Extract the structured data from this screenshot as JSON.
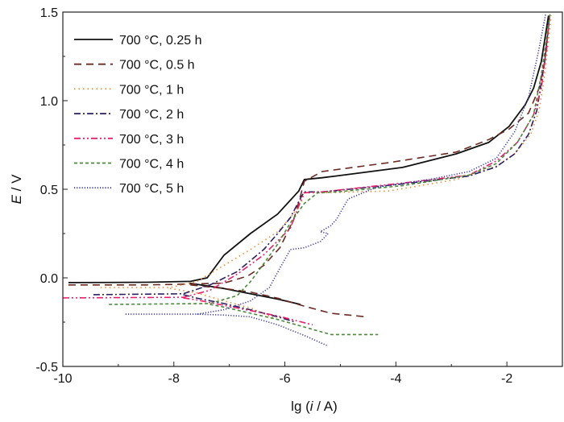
{
  "chart_data": {
    "type": "line",
    "title": "",
    "xlabel": "lg (i / A)",
    "xlabel_parts": {
      "prefix": "lg (",
      "italic": "i",
      "suffix": " / A)"
    },
    "ylabel": "E / V",
    "ylabel_parts": {
      "italic": "E",
      "suffix": " / V"
    },
    "xlim": [
      -10,
      -1
    ],
    "ylim": [
      -0.5,
      1.5
    ],
    "xticks": [
      -10,
      -8,
      -6,
      -4,
      -2
    ],
    "xtick_labels": [
      "-10",
      "-8",
      "-6",
      "-4",
      "-2"
    ],
    "yticks": [
      -0.5,
      0.0,
      0.5,
      1.0,
      1.5
    ],
    "ytick_labels": [
      "-0.5",
      "0.0",
      "0.5",
      "1.0",
      "1.5"
    ],
    "grid": false,
    "legend_position": "top-left",
    "series": [
      {
        "name": "700 °C, 0.25 h",
        "color": "#111111",
        "style": "solid",
        "anodic": [
          [
            -9.9,
            -0.027
          ],
          [
            -8.5,
            -0.025
          ],
          [
            -7.7,
            -0.02
          ],
          [
            -7.4,
            0.0
          ],
          [
            -7.1,
            0.127
          ],
          [
            -6.62,
            0.25
          ],
          [
            -6.13,
            0.36
          ],
          [
            -5.75,
            0.49
          ],
          [
            -5.65,
            0.555
          ],
          [
            -5.33,
            0.565
          ],
          [
            -5.07,
            0.575
          ],
          [
            -3.88,
            0.623
          ],
          [
            -2.91,
            0.7
          ],
          [
            -2.33,
            0.764
          ],
          [
            -1.96,
            0.855
          ],
          [
            -1.67,
            0.977
          ],
          [
            -1.52,
            1.07
          ],
          [
            -1.38,
            1.22
          ],
          [
            -1.25,
            1.48
          ]
        ],
        "cathodic": [
          [
            -7.72,
            -0.03
          ],
          [
            -7.1,
            -0.06
          ],
          [
            -6.62,
            -0.09
          ],
          [
            -6.13,
            -0.12
          ],
          [
            -5.72,
            -0.15
          ]
        ]
      },
      {
        "name": "700 °C, 0.5 h",
        "color": "#6b2a22",
        "style": "dashed",
        "anodic": [
          [
            -9.9,
            -0.04
          ],
          [
            -8.5,
            -0.04
          ],
          [
            -7.7,
            -0.035
          ],
          [
            -7.1,
            -0.03
          ],
          [
            -6.67,
            0.01
          ],
          [
            -6.38,
            0.07
          ],
          [
            -6.09,
            0.17
          ],
          [
            -5.84,
            0.33
          ],
          [
            -5.72,
            0.46
          ],
          [
            -5.65,
            0.545
          ],
          [
            -5.33,
            0.6
          ],
          [
            -4.13,
            0.65
          ],
          [
            -2.91,
            0.71
          ],
          [
            -2.33,
            0.78
          ],
          [
            -1.96,
            0.84
          ],
          [
            -1.61,
            0.93
          ],
          [
            -1.42,
            1.07
          ],
          [
            -1.32,
            1.22
          ],
          [
            -1.23,
            1.48
          ]
        ],
        "cathodic": [
          [
            -7.7,
            -0.04
          ],
          [
            -7.1,
            -0.06
          ],
          [
            -6.62,
            -0.08
          ],
          [
            -6.13,
            -0.115
          ],
          [
            -5.65,
            -0.16
          ],
          [
            -5.17,
            -0.2
          ],
          [
            -4.54,
            -0.22
          ]
        ]
      },
      {
        "name": "700 °C, 1 h",
        "color": "#f08a2c",
        "style": "dotted",
        "anodic": [
          [
            -9.32,
            -0.055
          ],
          [
            -8.07,
            -0.055
          ],
          [
            -7.58,
            -0.02
          ],
          [
            -7.1,
            0.07
          ],
          [
            -6.62,
            0.16
          ],
          [
            -6.13,
            0.26
          ],
          [
            -5.9,
            0.34
          ],
          [
            -5.7,
            0.43
          ],
          [
            -5.65,
            0.48
          ],
          [
            -5.33,
            0.48
          ],
          [
            -4.13,
            0.49
          ],
          [
            -2.91,
            0.555
          ],
          [
            -2.19,
            0.63
          ],
          [
            -1.86,
            0.7
          ],
          [
            -1.57,
            0.81
          ],
          [
            -1.42,
            0.945
          ],
          [
            -1.32,
            1.145
          ],
          [
            -1.25,
            1.34
          ],
          [
            -1.2,
            1.48
          ]
        ],
        "cathodic": [
          [
            -8.07,
            -0.06
          ],
          [
            -7.58,
            -0.085
          ],
          [
            -7.1,
            -0.13
          ],
          [
            -6.62,
            -0.17
          ],
          [
            -6.13,
            -0.235
          ]
        ]
      },
      {
        "name": "700 °C, 2 h",
        "color": "#2a2060",
        "style": "dash-dot",
        "anodic": [
          [
            -9.45,
            -0.095
          ],
          [
            -7.83,
            -0.09
          ],
          [
            -7.35,
            -0.04
          ],
          [
            -6.86,
            0.035
          ],
          [
            -6.38,
            0.16
          ],
          [
            -6.13,
            0.25
          ],
          [
            -5.9,
            0.34
          ],
          [
            -5.7,
            0.46
          ],
          [
            -5.65,
            0.485
          ],
          [
            -5.33,
            0.485
          ],
          [
            -3.88,
            0.53
          ],
          [
            -2.68,
            0.575
          ],
          [
            -2.19,
            0.627
          ],
          [
            -1.86,
            0.7
          ],
          [
            -1.61,
            0.81
          ],
          [
            -1.46,
            0.945
          ],
          [
            -1.32,
            1.22
          ],
          [
            -1.23,
            1.48
          ]
        ],
        "cathodic": [
          [
            -7.83,
            -0.095
          ],
          [
            -7.58,
            -0.115
          ],
          [
            -7.1,
            -0.145
          ],
          [
            -6.62,
            -0.18
          ],
          [
            -6.13,
            -0.22
          ],
          [
            -5.8,
            -0.25
          ]
        ]
      },
      {
        "name": "700 °C, 3 h",
        "color": "#e8206e",
        "style": "dash-dot-dot",
        "anodic": [
          [
            -10,
            -0.113
          ],
          [
            -7.83,
            -0.11
          ],
          [
            -7.35,
            -0.07
          ],
          [
            -6.86,
            0.02
          ],
          [
            -6.38,
            0.13
          ],
          [
            -5.9,
            0.28
          ],
          [
            -5.7,
            0.445
          ],
          [
            -5.65,
            0.48
          ],
          [
            -5.33,
            0.485
          ],
          [
            -3.88,
            0.535
          ],
          [
            -2.68,
            0.58
          ],
          [
            -2.19,
            0.66
          ],
          [
            -1.81,
            0.765
          ],
          [
            -1.52,
            0.92
          ],
          [
            -1.38,
            1.07
          ],
          [
            -1.28,
            1.3
          ],
          [
            -1.23,
            1.48
          ]
        ],
        "cathodic": [
          [
            -7.83,
            -0.113
          ],
          [
            -7.58,
            -0.125
          ],
          [
            -6.86,
            -0.17
          ],
          [
            -6.13,
            -0.215
          ],
          [
            -5.5,
            -0.265
          ]
        ]
      },
      {
        "name": "700 °C, 4 h",
        "color": "#4a8a3a",
        "style": "short-dashed",
        "anodic": [
          [
            -9.17,
            -0.15
          ],
          [
            -7.35,
            -0.145
          ],
          [
            -6.86,
            -0.1
          ],
          [
            -6.62,
            -0.022
          ],
          [
            -6.38,
            0.08
          ],
          [
            -6.13,
            0.19
          ],
          [
            -5.9,
            0.31
          ],
          [
            -5.65,
            0.42
          ],
          [
            -5.41,
            0.48
          ],
          [
            -5.07,
            0.485
          ],
          [
            -3.88,
            0.52
          ],
          [
            -2.68,
            0.58
          ],
          [
            -2.19,
            0.645
          ],
          [
            -1.81,
            0.765
          ],
          [
            -1.52,
            0.92
          ],
          [
            -1.38,
            1.145
          ],
          [
            -1.25,
            1.43
          ],
          [
            -1.22,
            1.49
          ]
        ],
        "cathodic": [
          [
            -7.35,
            -0.15
          ],
          [
            -7.1,
            -0.165
          ],
          [
            -6.13,
            -0.235
          ],
          [
            -5.17,
            -0.32
          ],
          [
            -4.32,
            -0.32
          ]
        ]
      },
      {
        "name": "700 °C, 5 h",
        "color": "#3a3aa0",
        "style": "fine-dotted",
        "anodic": [
          [
            -8.87,
            -0.205
          ],
          [
            -7.58,
            -0.205
          ],
          [
            -7.1,
            -0.18
          ],
          [
            -6.62,
            -0.13
          ],
          [
            -6.28,
            -0.055
          ],
          [
            -6.09,
            0.055
          ],
          [
            -5.9,
            0.16
          ],
          [
            -5.65,
            0.17
          ],
          [
            -5.36,
            0.205
          ],
          [
            -5.22,
            0.25
          ],
          [
            -5.36,
            0.26
          ],
          [
            -5.17,
            0.295
          ],
          [
            -5.07,
            0.33
          ],
          [
            -4.86,
            0.445
          ],
          [
            -4.36,
            0.51
          ],
          [
            -3.4,
            0.555
          ],
          [
            -2.68,
            0.6
          ],
          [
            -2.19,
            0.675
          ],
          [
            -1.86,
            0.825
          ],
          [
            -1.61,
            1.02
          ],
          [
            -1.42,
            1.295
          ],
          [
            -1.3,
            1.49
          ]
        ],
        "cathodic": [
          [
            -7.58,
            -0.205
          ],
          [
            -7.1,
            -0.21
          ],
          [
            -6.62,
            -0.22
          ],
          [
            -6.13,
            -0.265
          ],
          [
            -5.65,
            -0.325
          ],
          [
            -5.22,
            -0.385
          ]
        ]
      }
    ]
  }
}
